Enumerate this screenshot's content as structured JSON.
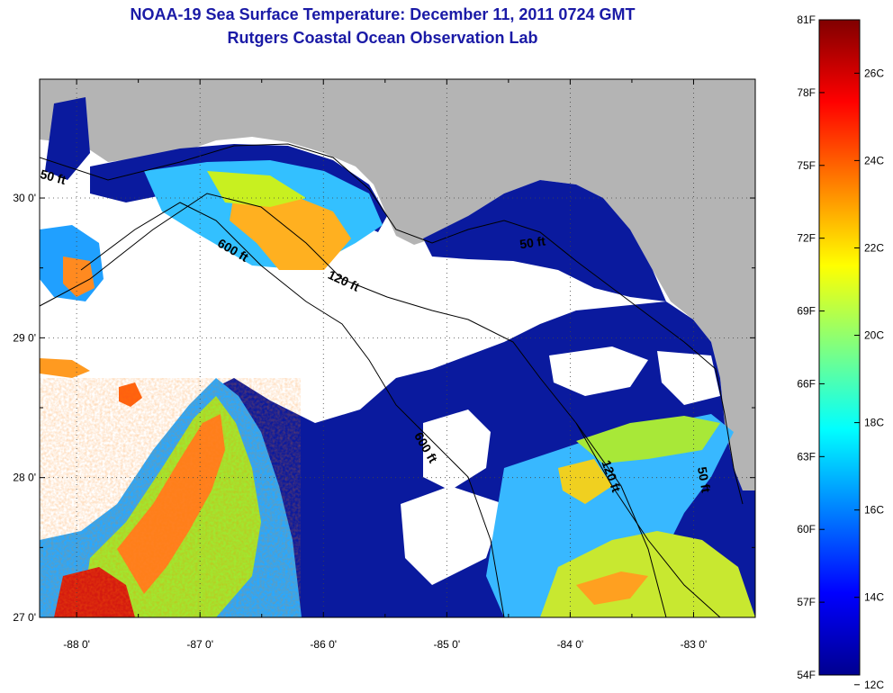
{
  "title": "NOAA-19 Sea Surface Temperature:  December 11, 2011 0724 GMT",
  "subtitle": "Rutgers Coastal Ocean Observation Lab",
  "colors": {
    "land": "#b4b4b4",
    "cloud": "#ffffff",
    "cold_water": "#0a1a9e",
    "title": "#1a1aa6"
  },
  "map": {
    "lon_range": [
      -88.3,
      -82.5
    ],
    "lat_range": [
      27.0,
      30.85
    ],
    "lon_ticks": [
      {
        "value": -88,
        "label": "-88 0'"
      },
      {
        "value": -87,
        "label": "-87 0'"
      },
      {
        "value": -86,
        "label": "-86 0'"
      },
      {
        "value": -85,
        "label": "-85 0'"
      },
      {
        "value": -84,
        "label": "-84 0'"
      },
      {
        "value": -83,
        "label": "-83 0'"
      }
    ],
    "lat_ticks": [
      {
        "value": 27,
        "label": "27 0'"
      },
      {
        "value": 28,
        "label": "28 0'"
      },
      {
        "value": 29,
        "label": "29 0'"
      },
      {
        "value": 30,
        "label": "30 0'"
      }
    ],
    "contour_labels": [
      {
        "text": "50 ft",
        "lon": -88.2,
        "lat": 30.12,
        "angle": 15
      },
      {
        "text": "600 ft",
        "lon": -86.75,
        "lat": 29.6,
        "angle": 30
      },
      {
        "text": "120 ft",
        "lon": -85.85,
        "lat": 29.38,
        "angle": 25
      },
      {
        "text": "50 ft",
        "lon": -84.3,
        "lat": 29.65,
        "angle": -8
      },
      {
        "text": "600 ft",
        "lon": -85.2,
        "lat": 28.2,
        "angle": 60
      },
      {
        "text": "120 ft",
        "lon": -83.7,
        "lat": 28.0,
        "angle": 70
      },
      {
        "text": "50 ft",
        "lon": -82.95,
        "lat": 27.98,
        "angle": 80
      }
    ]
  },
  "colorbar": {
    "fahrenheit_labels": [
      "81F",
      "78F",
      "75F",
      "72F",
      "69F",
      "66F",
      "63F",
      "60F",
      "57F",
      "54F"
    ],
    "celsius_labels": [
      "26C",
      "24C",
      "22C",
      "20C",
      "18C",
      "16C",
      "14C",
      "12C"
    ],
    "f_range": [
      54,
      81
    ],
    "c_ticks": [
      26,
      24,
      22,
      20,
      18,
      16,
      14,
      12
    ]
  }
}
